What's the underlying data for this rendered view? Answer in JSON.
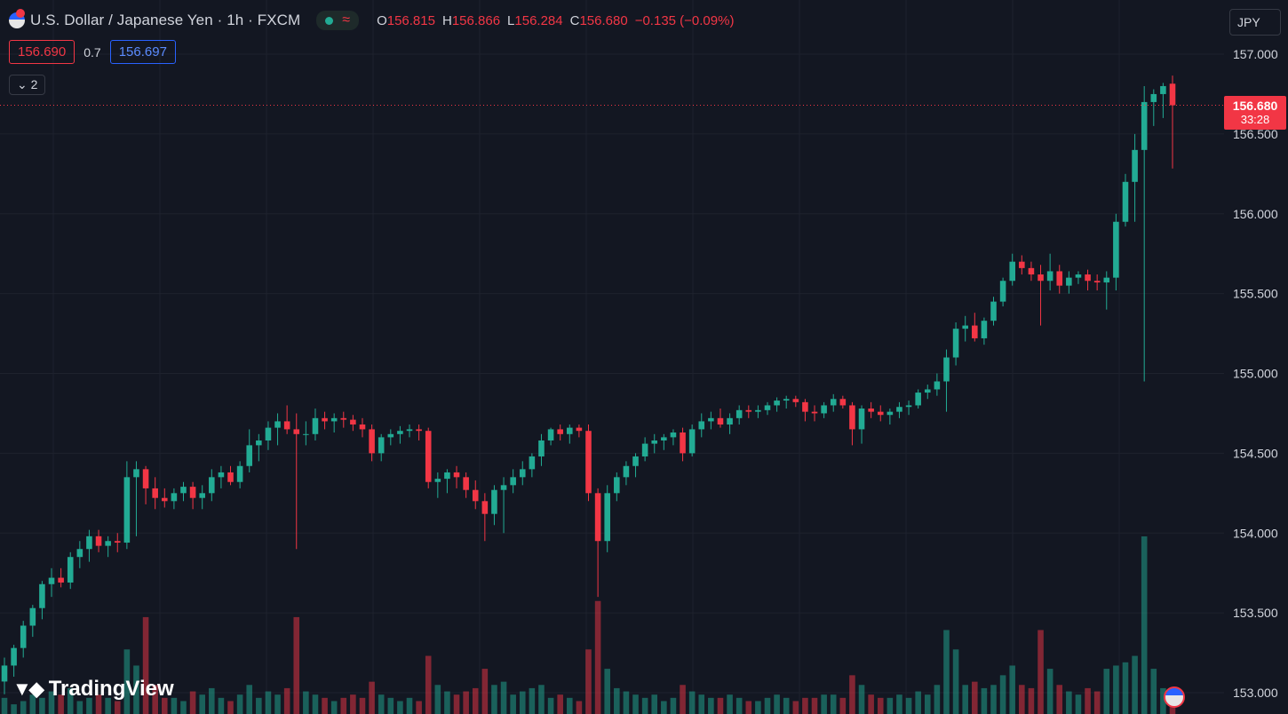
{
  "header": {
    "symbol_title": "U.S. Dollar / Japanese Yen · 1h · FXCM",
    "ohlc": {
      "o_label": "O",
      "o": "156.815",
      "h_label": "H",
      "h": "156.866",
      "l_label": "L",
      "l": "156.284",
      "c_label": "C",
      "c": "156.680",
      "change": "−0.135 (−0.09%)"
    },
    "status_icons": [
      "market-open-dot-icon",
      "wave-icon"
    ]
  },
  "quote": {
    "sell": "156.690",
    "spread": "0.7",
    "buy": "156.697"
  },
  "collapse_label": "2",
  "currency_button": "JPY",
  "last_price_label": {
    "price": "156.680",
    "countdown": "33:28"
  },
  "branding": {
    "logo_text": "TradingView"
  },
  "colors": {
    "background": "#131722",
    "up": "#22ab94",
    "down": "#f23645",
    "grid": "#1e222d",
    "text": "#d1d4dc"
  },
  "chart_data": {
    "type": "candlestick",
    "title": "U.S. Dollar / Japanese Yen · 1h · FXCM",
    "ylim": [
      152.98,
      157.12
    ],
    "y_ticks": [
      "157.000",
      "156.500",
      "156.000",
      "155.500",
      "155.000",
      "154.500",
      "154.000",
      "153.500",
      "153.000"
    ],
    "y_tick_values": [
      157.0,
      156.5,
      156.0,
      155.5,
      155.0,
      154.5,
      154.0,
      153.5,
      153.0
    ],
    "grid": true,
    "last_price": 156.68,
    "volume_series_included": true,
    "candles": [
      [
        153.07,
        153.22,
        152.99,
        153.17
      ],
      [
        153.17,
        153.3,
        153.1,
        153.28
      ],
      [
        153.28,
        153.45,
        153.22,
        153.42
      ],
      [
        153.42,
        153.55,
        153.35,
        153.53
      ],
      [
        153.53,
        153.7,
        153.46,
        153.68
      ],
      [
        153.68,
        153.78,
        153.6,
        153.72
      ],
      [
        153.72,
        153.78,
        153.66,
        153.69
      ],
      [
        153.69,
        153.88,
        153.65,
        153.85
      ],
      [
        153.85,
        153.95,
        153.78,
        153.9
      ],
      [
        153.9,
        154.02,
        153.82,
        153.98
      ],
      [
        153.98,
        154.02,
        153.88,
        153.92
      ],
      [
        153.92,
        153.98,
        153.85,
        153.95
      ],
      [
        153.95,
        154.0,
        153.88,
        153.94
      ],
      [
        153.94,
        154.45,
        153.9,
        154.35
      ],
      [
        154.35,
        154.45,
        153.98,
        154.4
      ],
      [
        154.4,
        154.42,
        154.18,
        154.28
      ],
      [
        154.28,
        154.35,
        154.15,
        154.22
      ],
      [
        154.22,
        154.28,
        154.16,
        154.2
      ],
      [
        154.2,
        154.28,
        154.15,
        154.25
      ],
      [
        154.25,
        154.32,
        154.2,
        154.29
      ],
      [
        154.29,
        154.32,
        154.15,
        154.22
      ],
      [
        154.22,
        154.3,
        154.15,
        154.25
      ],
      [
        154.25,
        154.4,
        154.2,
        154.35
      ],
      [
        154.35,
        154.42,
        154.28,
        154.38
      ],
      [
        154.38,
        154.42,
        154.3,
        154.32
      ],
      [
        154.32,
        154.45,
        154.28,
        154.42
      ],
      [
        154.42,
        154.65,
        154.38,
        154.55
      ],
      [
        154.55,
        154.62,
        154.45,
        154.58
      ],
      [
        154.58,
        154.7,
        154.52,
        154.66
      ],
      [
        154.66,
        154.75,
        154.55,
        154.7
      ],
      [
        154.7,
        154.8,
        154.62,
        154.65
      ],
      [
        154.65,
        154.75,
        153.9,
        154.62
      ],
      [
        154.62,
        154.7,
        154.55,
        154.62
      ],
      [
        154.62,
        154.78,
        154.58,
        154.72
      ],
      [
        154.72,
        154.76,
        154.65,
        154.7
      ],
      [
        154.7,
        154.75,
        154.63,
        154.72
      ],
      [
        154.72,
        154.76,
        154.66,
        154.71
      ],
      [
        154.71,
        154.74,
        154.64,
        154.68
      ],
      [
        154.68,
        154.72,
        154.6,
        154.65
      ],
      [
        154.65,
        154.68,
        154.45,
        154.5
      ],
      [
        154.5,
        154.62,
        154.45,
        154.6
      ],
      [
        154.6,
        154.65,
        154.55,
        154.62
      ],
      [
        154.62,
        154.67,
        154.56,
        154.64
      ],
      [
        154.64,
        154.68,
        154.6,
        154.65
      ],
      [
        154.65,
        154.68,
        154.58,
        154.64
      ],
      [
        154.64,
        154.66,
        154.28,
        154.32
      ],
      [
        154.32,
        154.38,
        154.22,
        154.34
      ],
      [
        154.34,
        154.4,
        154.25,
        154.38
      ],
      [
        154.38,
        154.42,
        154.28,
        154.35
      ],
      [
        154.35,
        154.38,
        154.22,
        154.27
      ],
      [
        154.27,
        154.33,
        154.15,
        154.2
      ],
      [
        154.2,
        154.25,
        153.95,
        154.12
      ],
      [
        154.12,
        154.3,
        154.05,
        154.27
      ],
      [
        154.27,
        154.35,
        154.0,
        154.3
      ],
      [
        154.3,
        154.4,
        154.25,
        154.35
      ],
      [
        154.35,
        154.45,
        154.3,
        154.4
      ],
      [
        154.4,
        154.5,
        154.35,
        154.48
      ],
      [
        154.48,
        154.62,
        154.42,
        154.58
      ],
      [
        154.58,
        154.66,
        154.55,
        154.65
      ],
      [
        154.65,
        154.68,
        154.58,
        154.62
      ],
      [
        154.62,
        154.68,
        154.56,
        154.66
      ],
      [
        154.66,
        154.68,
        154.6,
        154.64
      ],
      [
        154.64,
        154.68,
        154.2,
        154.25
      ],
      [
        154.25,
        154.28,
        153.6,
        153.95
      ],
      [
        153.95,
        154.3,
        153.88,
        154.25
      ],
      [
        154.25,
        154.38,
        154.2,
        154.35
      ],
      [
        154.35,
        154.45,
        154.3,
        154.42
      ],
      [
        154.42,
        154.5,
        154.35,
        154.48
      ],
      [
        154.48,
        154.6,
        154.45,
        154.56
      ],
      [
        154.56,
        154.62,
        154.5,
        154.58
      ],
      [
        154.58,
        154.62,
        154.52,
        154.6
      ],
      [
        154.6,
        154.65,
        154.55,
        154.63
      ],
      [
        154.63,
        154.66,
        154.45,
        154.5
      ],
      [
        154.5,
        154.68,
        154.48,
        154.65
      ],
      [
        154.65,
        154.75,
        154.6,
        154.7
      ],
      [
        154.7,
        154.76,
        154.65,
        154.72
      ],
      [
        154.72,
        154.78,
        154.66,
        154.68
      ],
      [
        154.68,
        154.75,
        154.62,
        154.72
      ],
      [
        154.72,
        154.8,
        154.68,
        154.77
      ],
      [
        154.77,
        154.8,
        154.72,
        154.76
      ],
      [
        154.76,
        154.8,
        154.72,
        154.77
      ],
      [
        154.77,
        154.82,
        154.74,
        154.8
      ],
      [
        154.8,
        154.85,
        154.76,
        154.83
      ],
      [
        154.83,
        154.86,
        154.78,
        154.84
      ],
      [
        154.84,
        154.86,
        154.79,
        154.82
      ],
      [
        154.82,
        154.84,
        154.7,
        154.76
      ],
      [
        154.76,
        154.8,
        154.7,
        154.75
      ],
      [
        154.75,
        154.82,
        154.72,
        154.8
      ],
      [
        154.8,
        154.87,
        154.76,
        154.84
      ],
      [
        154.84,
        154.86,
        154.78,
        154.8
      ],
      [
        154.8,
        154.82,
        154.55,
        154.65
      ],
      [
        154.65,
        154.8,
        154.56,
        154.78
      ],
      [
        154.78,
        154.82,
        154.72,
        154.76
      ],
      [
        154.76,
        154.8,
        154.7,
        154.74
      ],
      [
        154.74,
        154.78,
        154.68,
        154.76
      ],
      [
        154.76,
        154.82,
        154.72,
        154.79
      ],
      [
        154.79,
        154.83,
        154.74,
        154.8
      ],
      [
        154.8,
        154.9,
        154.78,
        154.88
      ],
      [
        154.88,
        154.93,
        154.84,
        154.9
      ],
      [
        154.9,
        155.0,
        154.86,
        154.95
      ],
      [
        154.95,
        155.15,
        154.76,
        155.1
      ],
      [
        155.1,
        155.32,
        155.05,
        155.28
      ],
      [
        155.28,
        155.36,
        155.2,
        155.3
      ],
      [
        155.3,
        155.38,
        155.2,
        155.22
      ],
      [
        155.22,
        155.35,
        155.18,
        155.33
      ],
      [
        155.33,
        155.48,
        155.3,
        155.45
      ],
      [
        155.45,
        155.6,
        155.42,
        155.58
      ],
      [
        155.58,
        155.75,
        155.55,
        155.7
      ],
      [
        155.7,
        155.74,
        155.62,
        155.66
      ],
      [
        155.66,
        155.7,
        155.58,
        155.62
      ],
      [
        155.62,
        155.68,
        155.3,
        155.58
      ],
      [
        155.58,
        155.75,
        155.52,
        155.64
      ],
      [
        155.64,
        155.68,
        155.5,
        155.55
      ],
      [
        155.55,
        155.64,
        155.5,
        155.6
      ],
      [
        155.6,
        155.64,
        155.56,
        155.62
      ],
      [
        155.62,
        155.65,
        155.52,
        155.58
      ],
      [
        155.58,
        155.62,
        155.52,
        155.57
      ],
      [
        155.57,
        155.64,
        155.4,
        155.6
      ],
      [
        155.6,
        156.0,
        155.52,
        155.95
      ],
      [
        155.95,
        156.25,
        155.92,
        156.2
      ],
      [
        156.2,
        156.5,
        155.95,
        156.4
      ],
      [
        156.4,
        156.8,
        154.95,
        156.7
      ],
      [
        156.7,
        156.78,
        156.55,
        156.75
      ],
      [
        156.75,
        156.82,
        156.6,
        156.8
      ],
      [
        156.815,
        156.866,
        156.284,
        156.68
      ]
    ],
    "volumes": [
      0.05,
      0.03,
      0.04,
      0.06,
      0.05,
      0.07,
      0.06,
      0.08,
      0.04,
      0.05,
      0.06,
      0.05,
      0.04,
      0.2,
      0.15,
      0.3,
      0.09,
      0.05,
      0.05,
      0.04,
      0.07,
      0.06,
      0.08,
      0.05,
      0.04,
      0.06,
      0.09,
      0.05,
      0.07,
      0.06,
      0.08,
      0.3,
      0.07,
      0.06,
      0.05,
      0.04,
      0.05,
      0.06,
      0.05,
      0.1,
      0.06,
      0.05,
      0.04,
      0.05,
      0.04,
      0.18,
      0.09,
      0.07,
      0.06,
      0.07,
      0.08,
      0.14,
      0.09,
      0.1,
      0.06,
      0.07,
      0.08,
      0.09,
      0.05,
      0.06,
      0.05,
      0.04,
      0.2,
      0.35,
      0.14,
      0.08,
      0.07,
      0.06,
      0.05,
      0.06,
      0.04,
      0.05,
      0.09,
      0.07,
      0.06,
      0.05,
      0.05,
      0.06,
      0.05,
      0.04,
      0.04,
      0.05,
      0.06,
      0.05,
      0.04,
      0.05,
      0.05,
      0.06,
      0.06,
      0.05,
      0.12,
      0.09,
      0.06,
      0.05,
      0.05,
      0.06,
      0.05,
      0.07,
      0.06,
      0.09,
      0.26,
      0.2,
      0.09,
      0.1,
      0.08,
      0.09,
      0.12,
      0.15,
      0.09,
      0.08,
      0.26,
      0.14,
      0.09,
      0.07,
      0.06,
      0.08,
      0.07,
      0.14,
      0.15,
      0.16,
      0.18,
      0.55,
      0.14,
      0.08,
      0.05
    ]
  }
}
